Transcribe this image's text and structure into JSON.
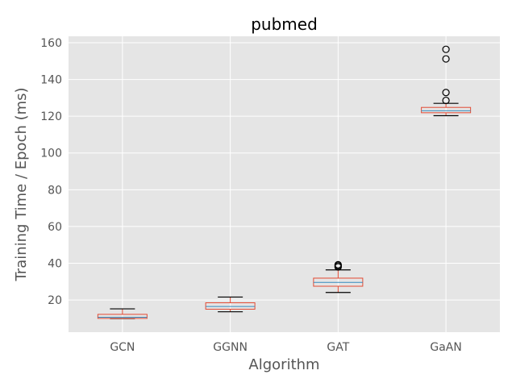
{
  "chart_data": {
    "type": "box",
    "title": "pubmed",
    "xlabel": "Algorithm",
    "ylabel": "Training Time / Epoch (ms)",
    "ylim": [
      2.5,
      163.5
    ],
    "yticks": [
      20,
      40,
      60,
      80,
      100,
      120,
      140,
      160
    ],
    "grid": true,
    "categories": [
      "GCN",
      "GGNN",
      "GAT",
      "GaAN"
    ],
    "boxes": [
      {
        "category": "GCN",
        "whisker_low": 9.9,
        "q1": 10.0,
        "median": 10.6,
        "q3": 12.2,
        "whisker_high": 15.2,
        "outliers": []
      },
      {
        "category": "GGNN",
        "whisker_low": 13.6,
        "q1": 15.0,
        "median": 16.5,
        "q3": 18.5,
        "whisker_high": 21.6,
        "outliers": []
      },
      {
        "category": "GAT",
        "whisker_low": 24.1,
        "q1": 27.5,
        "median": 29.6,
        "q3": 31.9,
        "whisker_high": 36.4,
        "outliers": [
          38.0,
          38.6,
          39.2
        ]
      },
      {
        "category": "GaAN",
        "whisker_low": 120.3,
        "q1": 121.9,
        "median": 123.0,
        "q3": 124.8,
        "whisker_high": 127.0,
        "outliers": [
          128.6,
          132.9,
          151.2,
          156.4
        ]
      }
    ],
    "colors": {
      "plot_bg": "#e5e5e5",
      "grid": "#ffffff",
      "box": "#e24a33",
      "median": "#348abd",
      "whisker": "#000000",
      "outlier": "#000000"
    }
  }
}
